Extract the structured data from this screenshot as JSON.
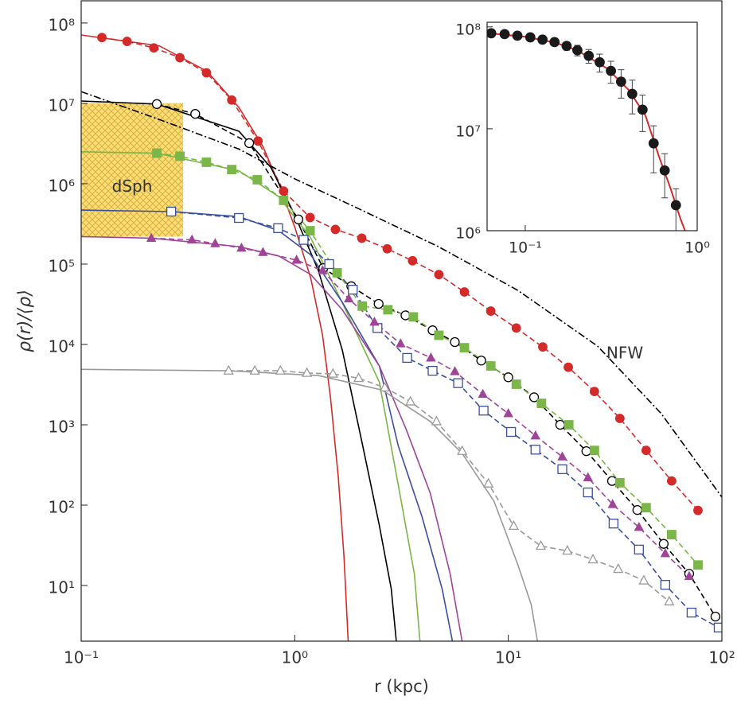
{
  "chart_data": [
    {
      "type": "line",
      "log_scale": {
        "x": true,
        "y": true
      },
      "x_label": "r (kpc)",
      "y_label": "ρ(r)/⟨ρ⟩",
      "xlim": [
        0.1,
        100
      ],
      "ylim": [
        2.03,
        189000000.0
      ],
      "xticks": [
        {
          "value": 0.1,
          "label": "10⁻¹"
        },
        {
          "value": 1,
          "label": "10⁰"
        },
        {
          "value": 10,
          "label": "10¹"
        },
        {
          "value": 100,
          "label": "10²"
        }
      ],
      "yticks": [
        {
          "value": 10,
          "label": "10¹"
        },
        {
          "value": 100,
          "label": "10²"
        },
        {
          "value": 1000,
          "label": "10³"
        },
        {
          "value": 10000,
          "label": "10⁴"
        },
        {
          "value": 100000,
          "label": "10⁵"
        },
        {
          "value": 1000000,
          "label": "10⁶"
        },
        {
          "value": 10000000,
          "label": "10⁷"
        },
        {
          "value": 100000000,
          "label": "10⁸"
        }
      ],
      "region": {
        "label": "dSph",
        "x": [
          0.1,
          0.3
        ],
        "y": [
          220000,
          10000000
        ],
        "color": "#f3df74"
      },
      "annotations": [
        {
          "text": "NFW"
        }
      ],
      "series": [
        {
          "color": "#d42a2a",
          "marker": "circle-filled",
          "line": "dashed",
          "x": [
            0.125,
            0.164,
            0.219,
            0.29,
            0.386,
            0.507,
            0.673,
            0.887,
            1.18,
            1.55,
            2.06,
            2.71,
            3.56,
            4.73,
            6.23,
            8.28,
            10.9,
            14.5,
            19.1,
            25.3,
            33.3,
            44.2,
            58.2,
            77.3
          ],
          "values": [
            66000000,
            59000000,
            49000000,
            37000000,
            24000000,
            11000000,
            3400000,
            810000,
            380000,
            270000,
            210000,
            155000,
            110000,
            74000,
            45000,
            26000,
            16000,
            9300,
            5200,
            2600,
            1200,
            480,
            200,
            86
          ]
        },
        {
          "color": "#d42a2a",
          "line": "solid",
          "x": [
            0.1,
            0.232,
            0.389,
            0.548,
            0.71,
            0.842,
            1,
            1.19,
            1.35,
            1.47,
            1.6,
            1.7,
            1.78
          ],
          "values": [
            71000000,
            52000000,
            25000000,
            8900000,
            2900000,
            1000000,
            290000,
            66000,
            13000,
            2200,
            220,
            23,
            2
          ]
        },
        {
          "color": "#000000",
          "marker": "circle-open",
          "line": "dashed",
          "x": [
            0.226,
            0.342,
            0.612,
            1.04,
            1.36,
            1.84,
            2.47,
            3.3,
            4.42,
            5.62,
            7.47,
            10,
            13.2,
            17.5,
            23.2,
            30.6,
            40.2,
            53.4,
            70.3,
            93.3
          ],
          "values": [
            9800000,
            7400000,
            3200000,
            360000,
            89000,
            53000,
            32000,
            23000,
            15000,
            10700,
            6300,
            3900,
            2200,
            1000,
            470,
            200,
            87,
            33,
            14,
            4.1
          ]
        },
        {
          "color": "#000000",
          "line": "solid",
          "x": [
            0.1,
            0.226,
            0.548,
            0.772,
            1,
            1.29,
            1.67,
            2.08,
            2.49,
            2.83,
            2.99
          ],
          "values": [
            10700000,
            9800000,
            4500000,
            1600000,
            410000,
            83000,
            8500,
            550,
            56,
            9.1,
            2
          ]
        },
        {
          "color": "#7ab648",
          "marker": "square-filled",
          "line": "dashed",
          "x": [
            0.226,
            0.29,
            0.386,
            0.507,
            0.668,
            0.887,
            1.18,
            1.58,
            2.07,
            2.73,
            3.59,
            4.73,
            6.23,
            8.28,
            10.9,
            14.3,
            19.2,
            25.3,
            33.3,
            44.2,
            58.2,
            77.3
          ],
          "values": [
            2400000,
            2200000,
            1850000,
            1500000,
            1120000,
            620000,
            260000,
            78000,
            30000,
            27000,
            22000,
            13000,
            9100,
            5400,
            3200,
            1850,
            1000,
            480,
            190,
            93,
            43,
            18
          ]
        },
        {
          "color": "#7ab648",
          "line": "solid",
          "x": [
            0.1,
            0.226,
            0.548,
            0.842,
            1.19,
            1.67,
            2.49,
            3.05,
            3.63,
            3.86
          ],
          "values": [
            2500000,
            2400000,
            1450000,
            690000,
            210000,
            33000,
            3400,
            180,
            14,
            2
          ]
        },
        {
          "color": "#3b4fa0",
          "marker": "square-open",
          "line": "dashed",
          "x": [
            0.264,
            0.548,
            0.836,
            1.1,
            1.45,
            1.87,
            2.44,
            3.36,
            4.42,
            5.82,
            7.66,
            10.3,
            13.4,
            17.9,
            23.6,
            31.1,
            40.9,
            54.3,
            72.1,
            96.6
          ],
          "values": [
            450000,
            375000,
            280000,
            200000,
            100000,
            48000,
            16000,
            6800,
            4700,
            3300,
            1500,
            815,
            490,
            280,
            144,
            59,
            28,
            10.2,
            4.6,
            3
          ]
        },
        {
          "color": "#3b4fa0",
          "line": "solid",
          "x": [
            0.1,
            0.264,
            0.548,
            0.842,
            1.19,
            1.67,
            2.49,
            3.05,
            3.95,
            4.9,
            5.48
          ],
          "values": [
            470000,
            450000,
            390000,
            260000,
            130000,
            33500,
            5400,
            550,
            71,
            9.1,
            2
          ]
        },
        {
          "color": "#a0449a",
          "marker": "triangle-filled",
          "line": "dashed",
          "x": [
            0.213,
            0.33,
            0.424,
            0.563,
            0.71,
            1.02,
            1.35,
            1.79,
            2.36,
            3.13,
            4.34,
            5.62,
            7.6,
            10,
            13.4,
            17.9,
            23.6,
            30.8,
            40.9,
            54.3,
            70.3
          ],
          "values": [
            210000,
            200000,
            180000,
            158000,
            140000,
            112000,
            83000,
            37000,
            19000,
            10200,
            6800,
            4600,
            2400,
            1380,
            730,
            400,
            220,
            102,
            53,
            25,
            13
          ]
        },
        {
          "color": "#a0449a",
          "line": "solid",
          "x": [
            0.1,
            0.213,
            0.548,
            0.842,
            1.19,
            1.67,
            2.49,
            3.33,
            4.31,
            5.34,
            6.08
          ],
          "values": [
            220000,
            210000,
            165000,
            126000,
            74000,
            27000,
            5400,
            870,
            141,
            14,
            2
          ]
        },
        {
          "color": "#9a9a9a",
          "marker": "triangle-open",
          "line": "dashed",
          "x": [
            0.49,
            0.65,
            0.857,
            1.14,
            1.51,
            1.99,
            2.64,
            3.48,
            4.61,
            6.08,
            8.07,
            10.6,
            14.2,
            18.9,
            24.9,
            32.7,
            43.1,
            56.7
          ],
          "values": [
            4700,
            4700,
            4700,
            4400,
            4300,
            3800,
            2900,
            1940,
            1100,
            470,
            185,
            55,
            31,
            27,
            21,
            16,
            11.5,
            6.3
          ]
        },
        {
          "color": "#9a9a9a",
          "line": "solid",
          "x": [
            0.1,
            0.49,
            1.29,
            2.57,
            4.31,
            6.08,
            8.57,
            11.1,
            12.8,
            13.7
          ],
          "values": [
            4900,
            4700,
            4100,
            2700,
            1100,
            440,
            112,
            18,
            5.8,
            2
          ]
        },
        {
          "color": "#000000",
          "line": "dashdot",
          "x": [
            0.1,
            0.232,
            0.548,
            1,
            1.99,
            4.7,
            11.1,
            26.2,
            52,
            100
          ],
          "values": [
            14000000,
            6300000,
            2700000,
            1150000,
            490000,
            165000,
            47000,
            9500,
            1380,
            126
          ]
        }
      ]
    },
    {
      "type": "line",
      "log_scale": {
        "x": true,
        "y": true
      },
      "xlim": [
        0.06,
        1.0
      ],
      "ylim": [
        1000000,
        111000000
      ],
      "xticks": [
        {
          "value": 0.1,
          "label": "10⁻¹"
        },
        {
          "value": 1,
          "label": "10⁰"
        }
      ],
      "yticks": [
        {
          "value": 1000000,
          "label": "10⁶"
        },
        {
          "value": 10000000,
          "label": "10⁷"
        },
        {
          "value": 100000000,
          "label": "10⁸"
        }
      ],
      "series": [
        {
          "color": "#d42a2a",
          "line": "solid",
          "x": [
            0.06,
            0.1,
            0.15,
            0.2,
            0.3,
            0.4,
            0.5,
            0.6,
            0.7,
            0.8,
            0.85
          ],
          "values": [
            87000000,
            80000000,
            70000000,
            59000000,
            39000000,
            24000000,
            13500000,
            5300000,
            2600000,
            1300000,
            1000000
          ]
        },
        {
          "color": "#1a1a1a",
          "marker": "circle-filled",
          "error_color": "#444444",
          "x": [
            0.0634,
            0.0759,
            0.09,
            0.107,
            0.126,
            0.148,
            0.174,
            0.201,
            0.234,
            0.271,
            0.315,
            0.361,
            0.419,
            0.481,
            0.558,
            0.647,
            0.752
          ],
          "values": [
            86600000,
            85000000,
            82000000,
            79000000,
            75000000,
            71000000,
            65000000,
            59000000,
            52000000,
            45000000,
            37000000,
            29000000,
            22000000,
            15400000,
            7200000,
            3900000,
            1780000
          ],
          "errors": [
            2000000,
            2000000,
            3000000,
            3000000,
            4000000,
            5000000,
            6000000,
            7000000,
            8000000,
            9000000,
            9000000,
            9000000,
            8000000,
            6000000,
            3500000,
            1800000,
            800000
          ]
        }
      ]
    }
  ]
}
